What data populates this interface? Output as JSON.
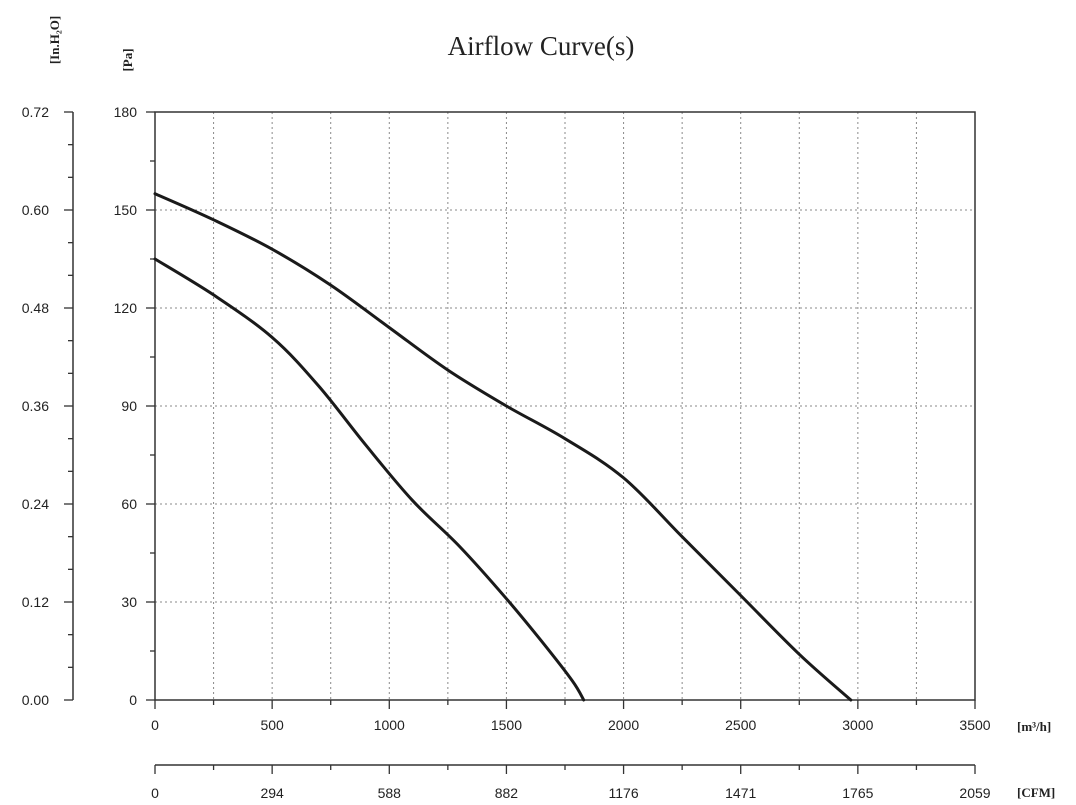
{
  "chart_data": {
    "type": "line",
    "title": "Airflow Curve(s)",
    "x_primary": {
      "unit_label": "[m³/h]",
      "range": [
        0,
        3500
      ],
      "ticks": [
        "0",
        "500",
        "1000",
        "1500",
        "2000",
        "2500",
        "3000",
        "3500"
      ]
    },
    "x_secondary": {
      "unit_label": "[CFM]",
      "range": [
        0,
        2059
      ],
      "ticks": [
        "0",
        "294",
        "588",
        "882",
        "1176",
        "1471",
        "1765",
        "2059"
      ]
    },
    "y_primary": {
      "unit_label": "[Pa]",
      "range": [
        0,
        180
      ],
      "ticks": [
        "0",
        "30",
        "60",
        "90",
        "120",
        "150",
        "180"
      ]
    },
    "y_secondary": {
      "unit_label": "[In.H₂O]",
      "range": [
        0,
        0.72
      ],
      "ticks": [
        "0.00",
        "0.12",
        "0.24",
        "0.36",
        "0.48",
        "0.60",
        "0.72"
      ]
    },
    "grid": true,
    "series": [
      {
        "points": [
          [
            0,
            155
          ],
          [
            250,
            147
          ],
          [
            500,
            138
          ],
          [
            750,
            127
          ],
          [
            1000,
            114
          ],
          [
            1250,
            101
          ],
          [
            1500,
            90
          ],
          [
            1750,
            80
          ],
          [
            2000,
            68
          ],
          [
            2250,
            50
          ],
          [
            2500,
            32
          ],
          [
            2750,
            14
          ],
          [
            2970,
            0
          ]
        ]
      },
      {
        "points": [
          [
            0,
            135
          ],
          [
            250,
            124
          ],
          [
            500,
            111
          ],
          [
            700,
            96
          ],
          [
            900,
            78
          ],
          [
            1100,
            61
          ],
          [
            1300,
            47
          ],
          [
            1500,
            31
          ],
          [
            1650,
            18
          ],
          [
            1780,
            6
          ],
          [
            1830,
            0
          ]
        ]
      }
    ]
  }
}
